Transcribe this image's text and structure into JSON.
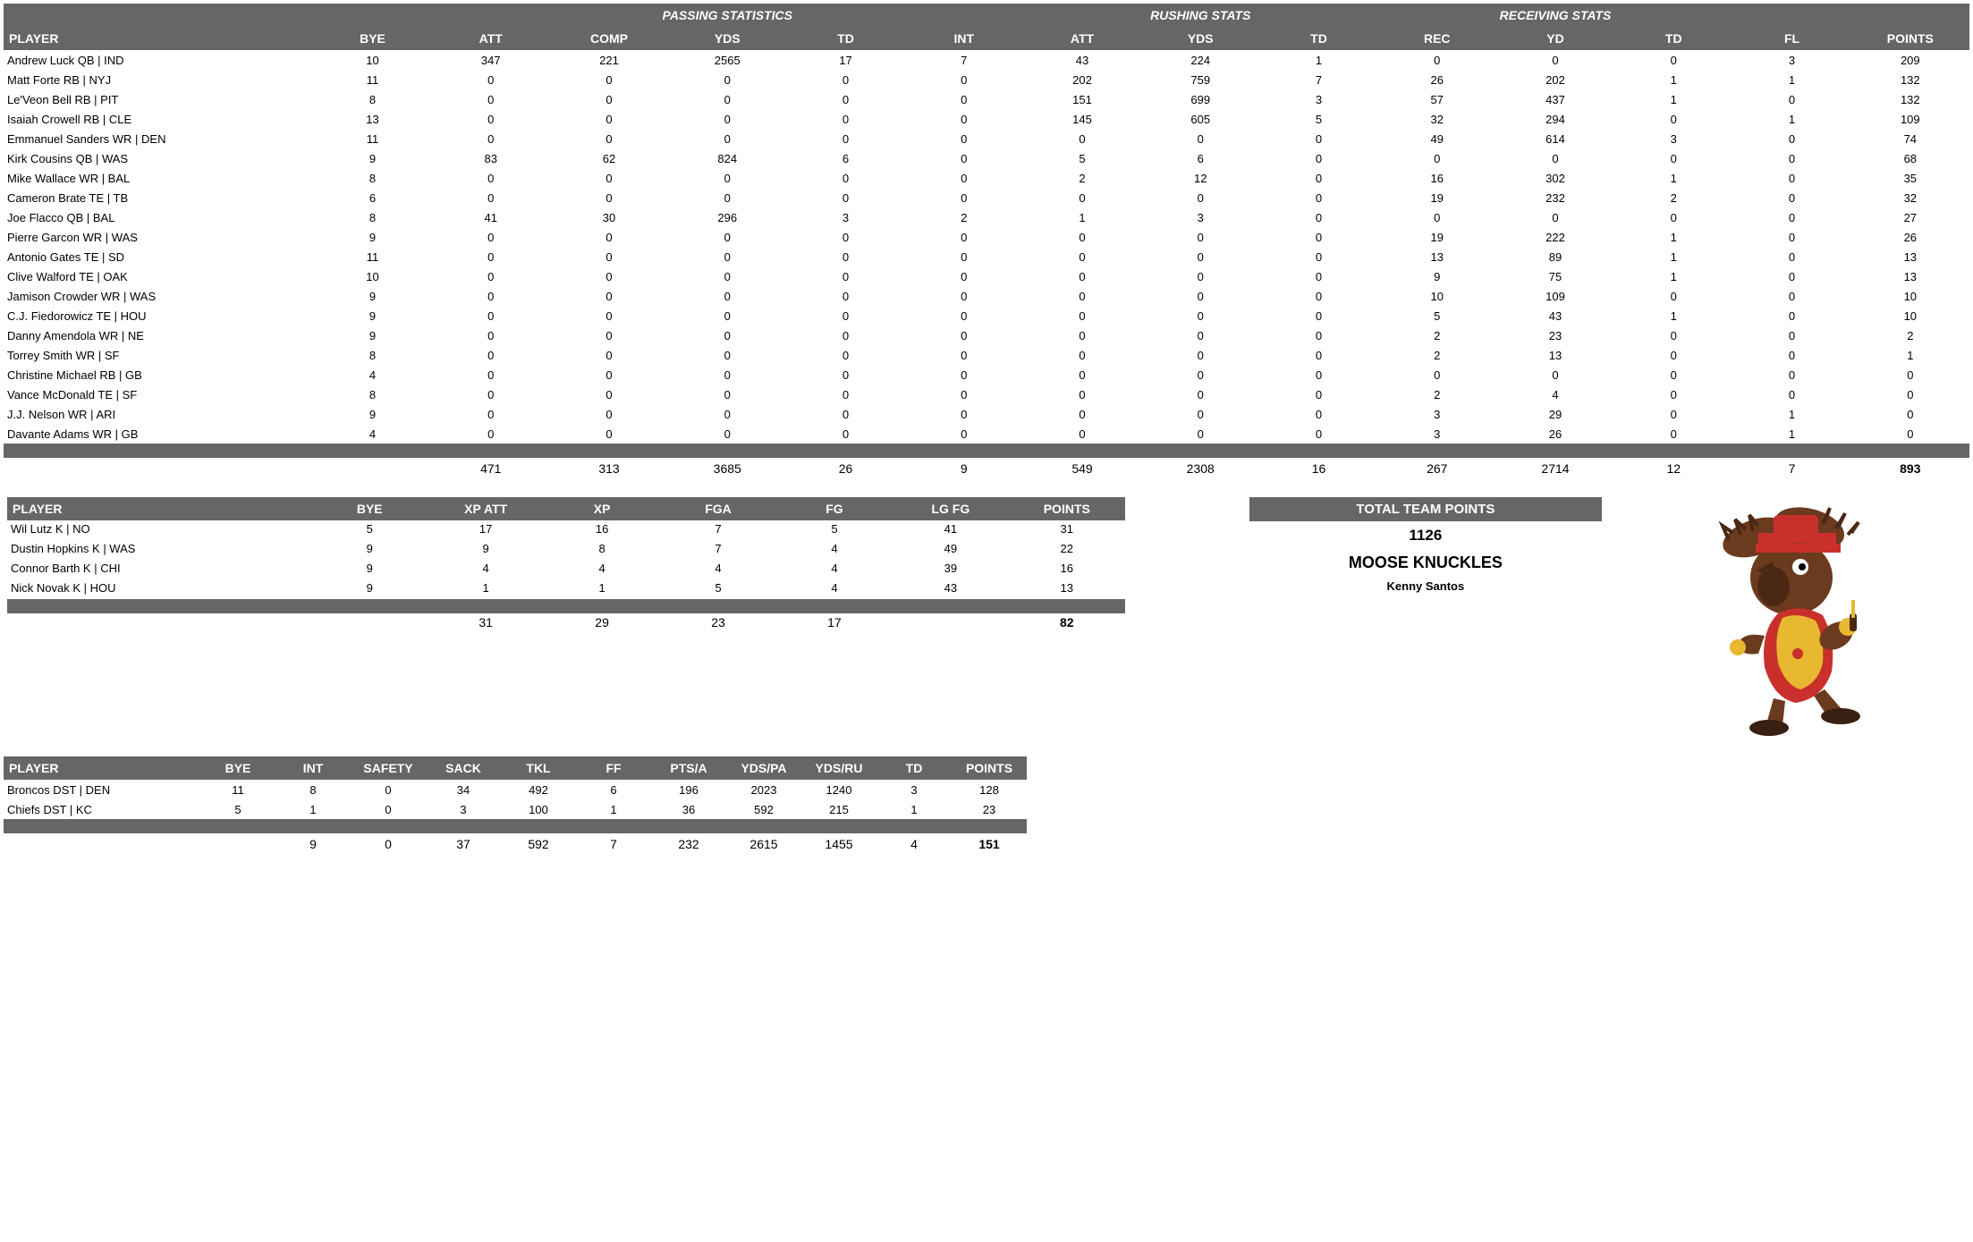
{
  "main": {
    "groups": [
      "",
      "PASSING STATISTICS",
      "RUSHING STATS",
      "RECEIVING STATS",
      ""
    ],
    "group_spans": [
      2,
      5,
      3,
      3,
      2
    ],
    "cols": [
      "PLAYER",
      "BYE",
      "ATT",
      "COMP",
      "YDS",
      "TD",
      "INT",
      "ATT",
      "YDS",
      "TD",
      "REC",
      "YD",
      "TD",
      "FL",
      "POINTS"
    ],
    "widths": [
      220,
      84,
      84,
      84,
      84,
      84,
      84,
      84,
      84,
      84,
      84,
      84,
      84,
      84,
      84
    ],
    "rows": [
      [
        "Andrew Luck QB | IND",
        10,
        347,
        221,
        2565,
        17,
        7,
        43,
        224,
        1,
        0,
        0,
        0,
        3,
        209
      ],
      [
        "Matt Forte RB | NYJ",
        11,
        0,
        0,
        0,
        0,
        0,
        202,
        759,
        7,
        26,
        202,
        1,
        1,
        132
      ],
      [
        "Le'Veon Bell RB | PIT",
        8,
        0,
        0,
        0,
        0,
        0,
        151,
        699,
        3,
        57,
        437,
        1,
        0,
        132
      ],
      [
        "Isaiah Crowell RB | CLE",
        13,
        0,
        0,
        0,
        0,
        0,
        145,
        605,
        5,
        32,
        294,
        0,
        1,
        109
      ],
      [
        "Emmanuel Sanders WR | DEN",
        11,
        0,
        0,
        0,
        0,
        0,
        0,
        0,
        0,
        49,
        614,
        3,
        0,
        74
      ],
      [
        "Kirk Cousins QB | WAS",
        9,
        83,
        62,
        824,
        6,
        0,
        5,
        6,
        0,
        0,
        0,
        0,
        0,
        68
      ],
      [
        "Mike Wallace WR | BAL",
        8,
        0,
        0,
        0,
        0,
        0,
        2,
        12,
        0,
        16,
        302,
        1,
        0,
        35
      ],
      [
        "Cameron Brate TE | TB",
        6,
        0,
        0,
        0,
        0,
        0,
        0,
        0,
        0,
        19,
        232,
        2,
        0,
        32
      ],
      [
        "Joe Flacco QB | BAL",
        8,
        41,
        30,
        296,
        3,
        2,
        1,
        3,
        0,
        0,
        0,
        0,
        0,
        27
      ],
      [
        "Pierre Garcon WR | WAS",
        9,
        0,
        0,
        0,
        0,
        0,
        0,
        0,
        0,
        19,
        222,
        1,
        0,
        26
      ],
      [
        "Antonio Gates TE | SD",
        11,
        0,
        0,
        0,
        0,
        0,
        0,
        0,
        0,
        13,
        89,
        1,
        0,
        13
      ],
      [
        "Clive Walford TE | OAK",
        10,
        0,
        0,
        0,
        0,
        0,
        0,
        0,
        0,
        9,
        75,
        1,
        0,
        13
      ],
      [
        "Jamison Crowder WR | WAS",
        9,
        0,
        0,
        0,
        0,
        0,
        0,
        0,
        0,
        10,
        109,
        0,
        0,
        10
      ],
      [
        "C.J. Fiedorowicz TE | HOU",
        9,
        0,
        0,
        0,
        0,
        0,
        0,
        0,
        0,
        5,
        43,
        1,
        0,
        10
      ],
      [
        "Danny Amendola WR | NE",
        9,
        0,
        0,
        0,
        0,
        0,
        0,
        0,
        0,
        2,
        23,
        0,
        0,
        2
      ],
      [
        "Torrey Smith WR | SF",
        8,
        0,
        0,
        0,
        0,
        0,
        0,
        0,
        0,
        2,
        13,
        0,
        0,
        1
      ],
      [
        "Christine Michael RB | GB",
        4,
        0,
        0,
        0,
        0,
        0,
        0,
        0,
        0,
        0,
        0,
        0,
        0,
        0
      ],
      [
        "Vance McDonald TE | SF",
        8,
        0,
        0,
        0,
        0,
        0,
        0,
        0,
        0,
        2,
        4,
        0,
        0,
        0
      ],
      [
        "J.J. Nelson WR | ARI",
        9,
        0,
        0,
        0,
        0,
        0,
        0,
        0,
        0,
        3,
        29,
        0,
        1,
        0
      ],
      [
        "Davante Adams WR | GB",
        4,
        0,
        0,
        0,
        0,
        0,
        0,
        0,
        0,
        3,
        26,
        0,
        1,
        0
      ]
    ],
    "totals": [
      "",
      "",
      471,
      313,
      3685,
      26,
      9,
      549,
      2308,
      16,
      267,
      2714,
      12,
      7,
      893
    ],
    "bold_last": true
  },
  "kick": {
    "cols": [
      "PLAYER",
      "BYE",
      "XP ATT",
      "XP",
      "FGA",
      "FG",
      "LG FG",
      "POINTS"
    ],
    "rows": [
      [
        "Wil Lutz K | NO",
        5,
        17,
        16,
        7,
        5,
        41,
        31
      ],
      [
        "Dustin Hopkins K | WAS",
        9,
        9,
        8,
        7,
        4,
        49,
        22
      ],
      [
        "Connor Barth K | CHI",
        9,
        4,
        4,
        4,
        4,
        39,
        16
      ],
      [
        "Nick Novak K | HOU",
        9,
        1,
        1,
        5,
        4,
        43,
        13
      ]
    ],
    "totals": [
      "",
      "",
      31,
      29,
      23,
      17,
      "",
      82
    ],
    "bold_last": true
  },
  "def": {
    "cols": [
      "PLAYER",
      "BYE",
      "INT",
      "SAFETY",
      "SACK",
      "TKL",
      "FF",
      "PTS/A",
      "YDS/PA",
      "YDS/RU",
      "TD",
      "POINTS"
    ],
    "rows": [
      [
        "Broncos DST | DEN",
        11,
        8,
        0,
        34,
        492,
        6,
        196,
        2023,
        1240,
        3,
        128
      ],
      [
        "Chiefs DST | KC",
        5,
        1,
        0,
        3,
        100,
        1,
        36,
        592,
        215,
        1,
        23
      ]
    ],
    "totals": [
      "",
      "",
      9,
      0,
      37,
      592,
      7,
      232,
      2615,
      1455,
      4,
      151
    ],
    "bold_last": true
  },
  "team": {
    "title": "TOTAL TEAM POINTS",
    "points": "1126",
    "name": "MOOSE KNUCKLES",
    "owner": "Kenny Santos"
  },
  "colors": {
    "header_bg": "#666666",
    "header_fg": "#ffffff"
  }
}
